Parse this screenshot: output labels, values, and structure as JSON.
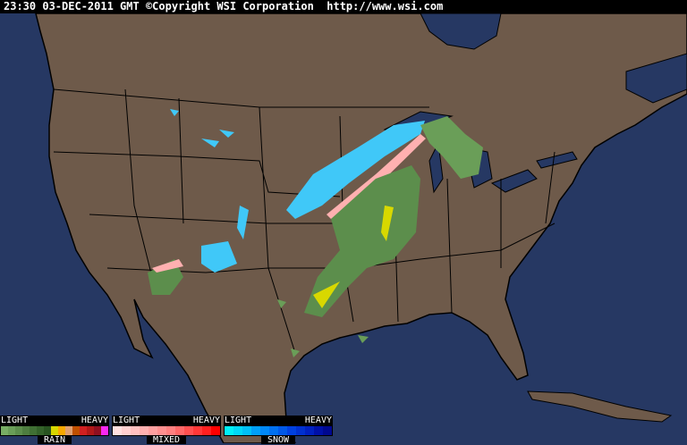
{
  "header": {
    "timestamp": "23:30 03-DEC-2011 GMT",
    "copyright": "©Copyright WSI Corporation",
    "url": "http://www.wsi.com"
  },
  "colors": {
    "ocean": "#263863",
    "land": "#6e5a4a",
    "border": "#000000"
  },
  "legends": [
    {
      "name": "RAIN",
      "light": "LIGHT",
      "heavy": "HEAVY",
      "colors": [
        "#78ae64",
        "#6a9e58",
        "#5c8e4c",
        "#4e7e40",
        "#407034",
        "#34622a",
        "#285420",
        "#d8d800",
        "#f8a800",
        "#e0a070",
        "#c05000",
        "#d02020",
        "#b01818",
        "#901020",
        "#f828f0"
      ]
    },
    {
      "name": "MIXED",
      "light": "LIGHT",
      "heavy": "HEAVY",
      "colors": [
        "#ffe0e0",
        "#ffd0d0",
        "#ffc0c0",
        "#ffb0b0",
        "#ffa0a0",
        "#ff9090",
        "#ff8080",
        "#ff6868",
        "#ff5050",
        "#ff3838",
        "#ff2020",
        "#ff0000"
      ]
    },
    {
      "name": "SNOW",
      "light": "LIGHT",
      "heavy": "HEAVY",
      "colors": [
        "#00f0f8",
        "#00d8f8",
        "#00c0f8",
        "#00a0f8",
        "#0088f8",
        "#0070f0",
        "#0058e8",
        "#0040e0",
        "#0030d0",
        "#0020c0",
        "#0010a8",
        "#000890"
      ]
    }
  ]
}
